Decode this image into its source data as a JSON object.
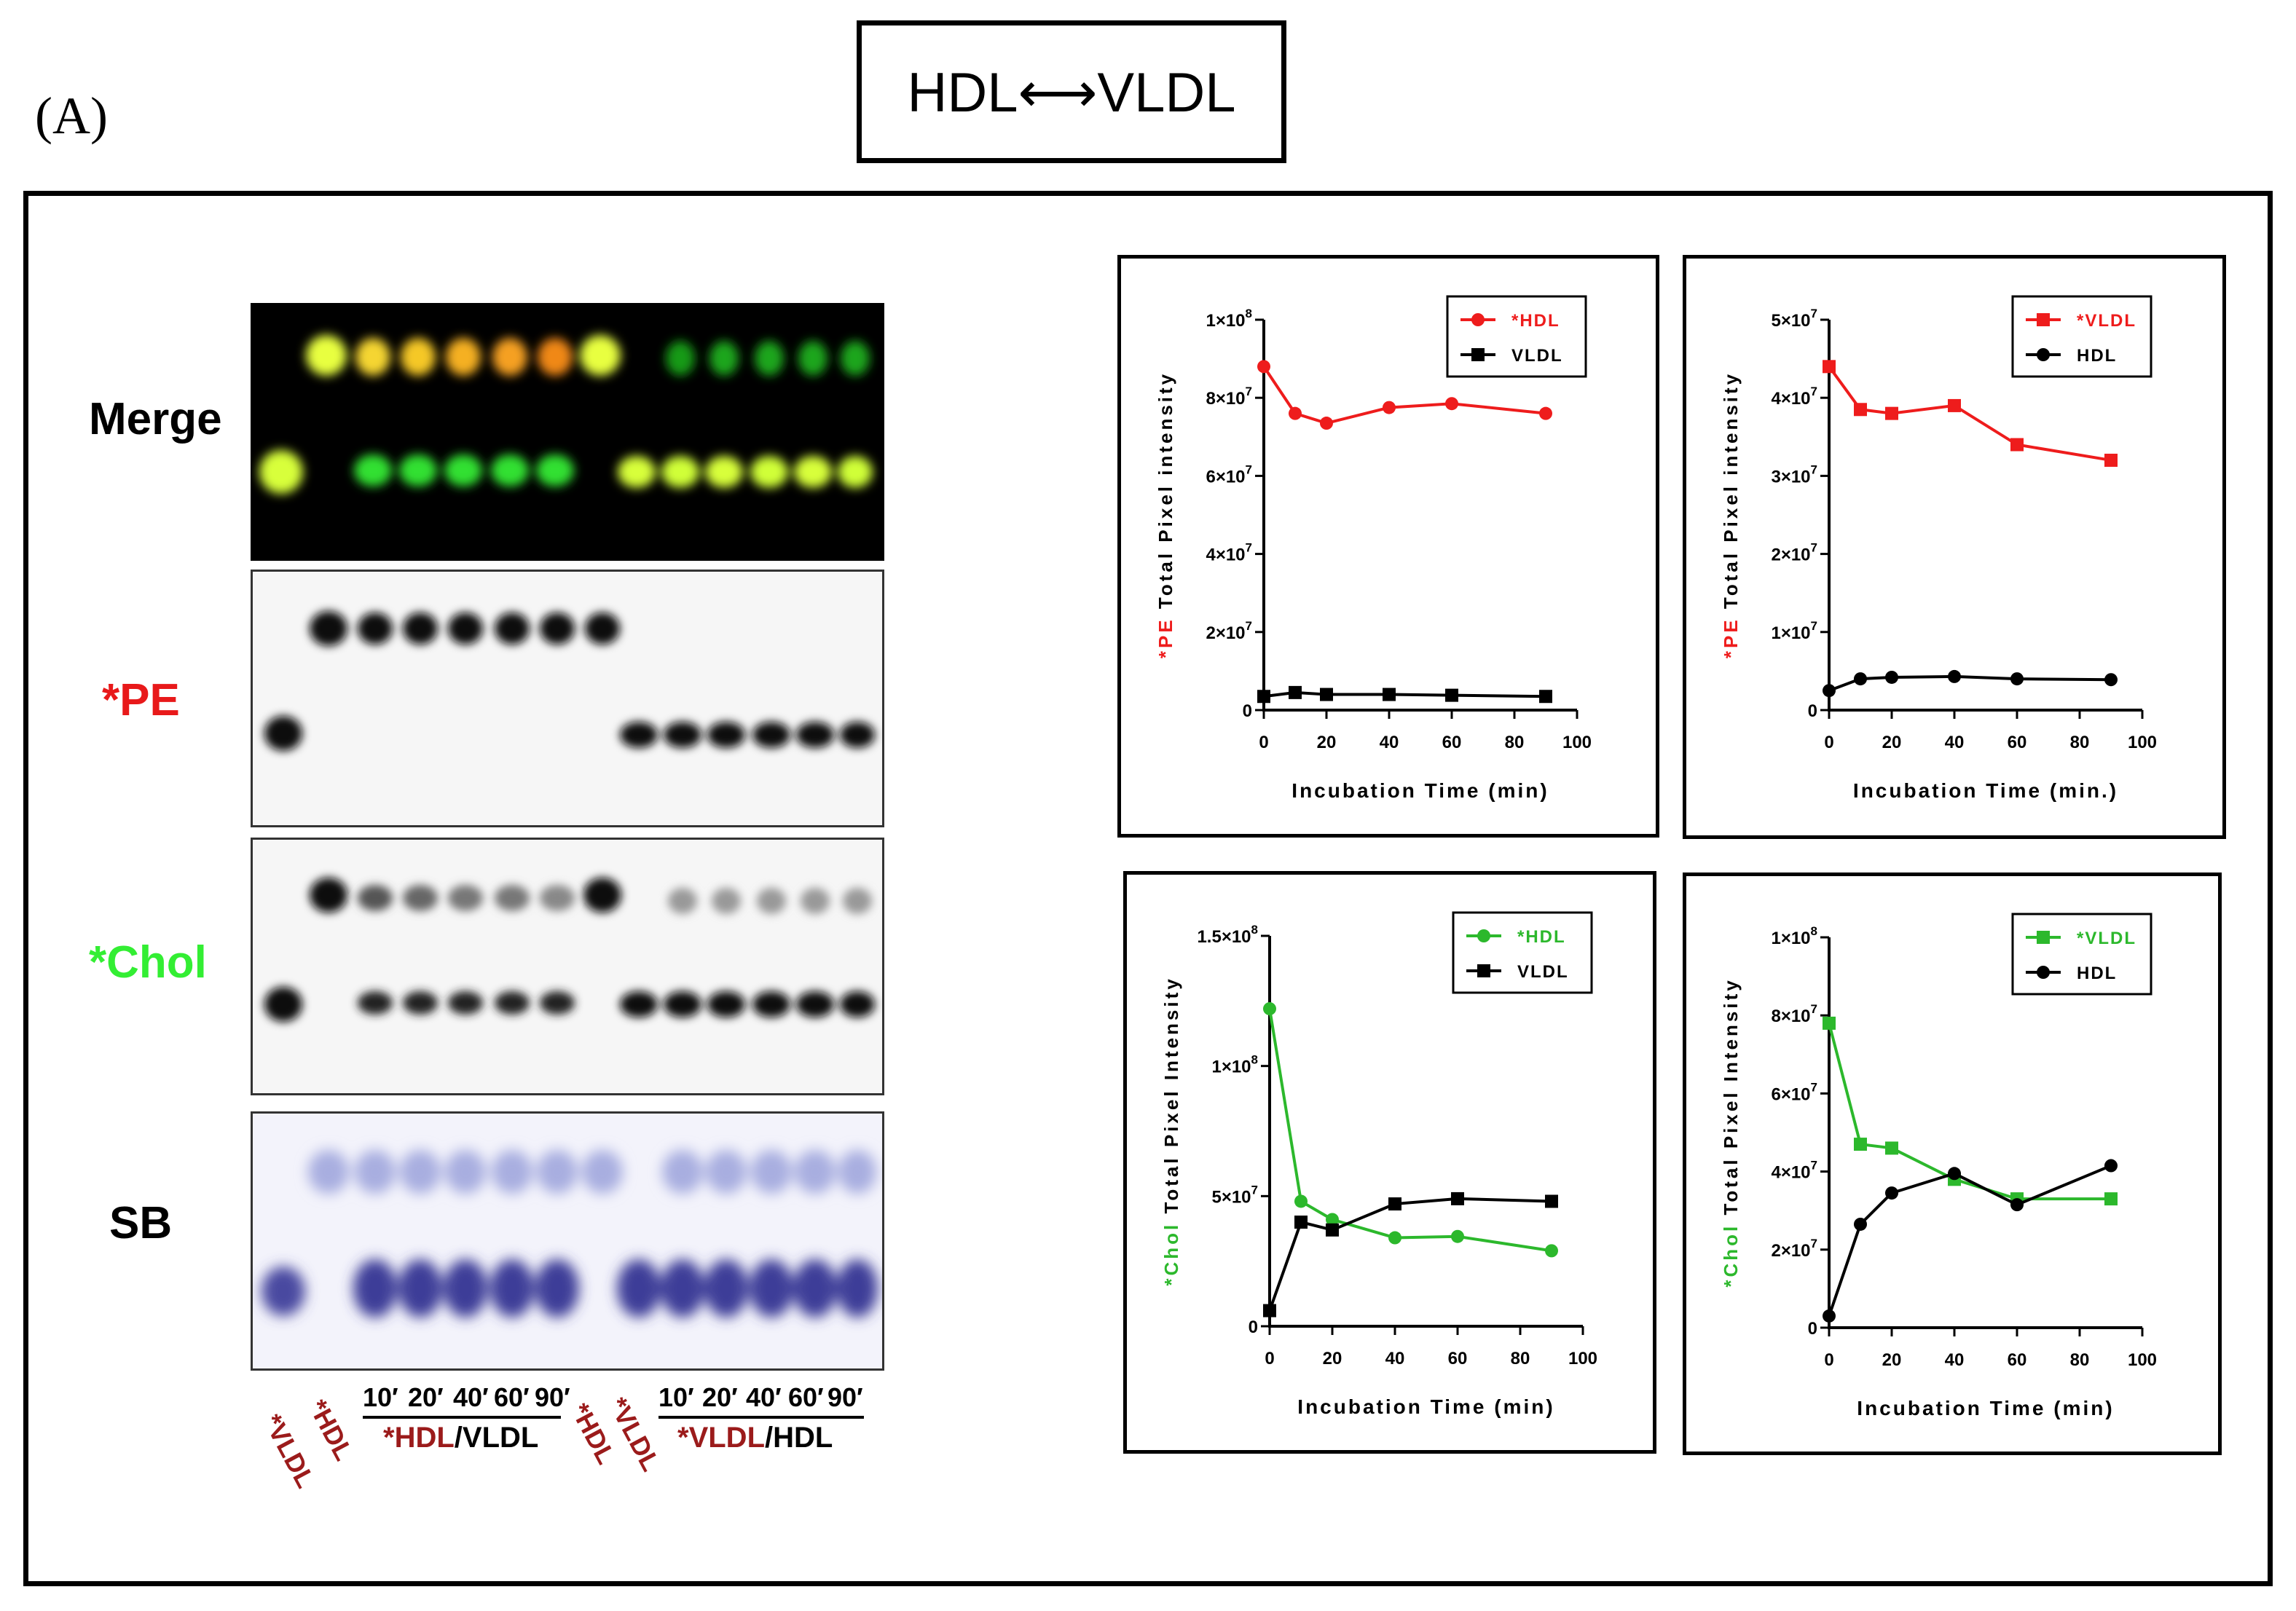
{
  "panel_label": "(A)",
  "header_title": "HDL⟷VLDL",
  "gel": {
    "row_labels": [
      "Merge",
      "*PE",
      "*Chol",
      "SB"
    ],
    "row_label_colors": [
      "#000000",
      "#e8191a",
      "#33ee33",
      "#000000"
    ],
    "lane_labels_left": [
      "*VLDL",
      "*HDL"
    ],
    "time_labels": [
      "10′",
      "20′",
      "40′",
      "60′",
      "90′"
    ],
    "group1_label_star_hdl": "*HDL",
    "group1_label_slash": "/",
    "group1_label_vldl": "VLDL",
    "lane_labels_right": [
      "*HDL",
      "*VLDL"
    ],
    "group2_label_star_vldl": "*VLDL",
    "group2_label_slash": "/",
    "group2_label_hdl": "HDL"
  },
  "colors": {
    "red": "#ee1c1c",
    "green": "#2cb82c",
    "black": "#000000",
    "lane_label": "#9b1b1b"
  },
  "chart_data": [
    {
      "type": "line",
      "ylabel_prefix": "*PE",
      "ylabel_rest": " Total Pixel intensity",
      "ylabel_color": "#ee1c1c",
      "xlabel": "Incubation Time (min)",
      "xlim": [
        0,
        100
      ],
      "xticks": [
        "0",
        "20",
        "40",
        "60",
        "80",
        "100"
      ],
      "ylim": [
        0,
        100000000
      ],
      "yticks": [
        {
          "mant": "0",
          "exp": ""
        },
        {
          "mant": "2×10",
          "exp": "7"
        },
        {
          "mant": "4×10",
          "exp": "7"
        },
        {
          "mant": "6×10",
          "exp": "7"
        },
        {
          "mant": "8×10",
          "exp": "7"
        },
        {
          "mant": "1×10",
          "exp": "8"
        }
      ],
      "legend_position": "top-right",
      "series": [
        {
          "name": "*HDL",
          "color": "#ee1c1c",
          "marker": "circle",
          "x": [
            0,
            10,
            20,
            40,
            60,
            90
          ],
          "values": [
            88000000,
            76000000,
            73500000,
            77500000,
            78500000,
            76000000
          ]
        },
        {
          "name": "VLDL",
          "color": "#000000",
          "marker": "square",
          "x": [
            0,
            10,
            20,
            40,
            60,
            90
          ],
          "values": [
            3500000,
            4500000,
            4000000,
            4000000,
            3800000,
            3500000
          ]
        }
      ]
    },
    {
      "type": "line",
      "ylabel_prefix": "*PE",
      "ylabel_rest": " Total Pixel intensity",
      "ylabel_color": "#ee1c1c",
      "xlabel": "Incubation Time (min.)",
      "xlim": [
        0,
        100
      ],
      "xticks": [
        "0",
        "20",
        "40",
        "60",
        "80",
        "100"
      ],
      "ylim": [
        0,
        50000000
      ],
      "yticks": [
        {
          "mant": "0",
          "exp": ""
        },
        {
          "mant": "1×10",
          "exp": "7"
        },
        {
          "mant": "2×10",
          "exp": "7"
        },
        {
          "mant": "3×10",
          "exp": "7"
        },
        {
          "mant": "4×10",
          "exp": "7"
        },
        {
          "mant": "5×10",
          "exp": "7"
        }
      ],
      "legend_position": "top-right",
      "series": [
        {
          "name": "*VLDL",
          "color": "#ee1c1c",
          "marker": "square",
          "x": [
            0,
            10,
            20,
            40,
            60,
            90
          ],
          "values": [
            44000000,
            38500000,
            38000000,
            39000000,
            34000000,
            32000000
          ]
        },
        {
          "name": "HDL",
          "color": "#000000",
          "marker": "circle",
          "x": [
            0,
            10,
            20,
            40,
            60,
            90
          ],
          "values": [
            2500000,
            4000000,
            4200000,
            4300000,
            4000000,
            3900000
          ]
        }
      ]
    },
    {
      "type": "line",
      "ylabel_prefix": "*Chol",
      "ylabel_rest": " Total Pixel Intensity",
      "ylabel_color": "#2cb82c",
      "xlabel": "Incubation Time (min)",
      "xlim": [
        0,
        100
      ],
      "xticks": [
        "0",
        "20",
        "40",
        "60",
        "80",
        "100"
      ],
      "ylim": [
        0,
        150000000
      ],
      "yticks": [
        {
          "mant": "0",
          "exp": ""
        },
        {
          "mant": "5×10",
          "exp": "7"
        },
        {
          "mant": "1×10",
          "exp": "8"
        },
        {
          "mant": "1.5×10",
          "exp": "8"
        }
      ],
      "legend_position": "top-right",
      "series": [
        {
          "name": "*HDL",
          "color": "#2cb82c",
          "marker": "circle",
          "x": [
            0,
            10,
            20,
            40,
            60,
            90
          ],
          "values": [
            122000000,
            48000000,
            41000000,
            34000000,
            34500000,
            29000000
          ]
        },
        {
          "name": "VLDL",
          "color": "#000000",
          "marker": "square",
          "x": [
            0,
            10,
            20,
            40,
            60,
            90
          ],
          "values": [
            6000000,
            40000000,
            37000000,
            47000000,
            49000000,
            48000000
          ]
        }
      ]
    },
    {
      "type": "line",
      "ylabel_prefix": "*Chol",
      "ylabel_rest": " Total Pixel Intensity",
      "ylabel_color": "#2cb82c",
      "xlabel": "Incubation Time (min)",
      "xlim": [
        0,
        100
      ],
      "xticks": [
        "0",
        "20",
        "40",
        "60",
        "80",
        "100"
      ],
      "ylim": [
        0,
        100000000
      ],
      "yticks": [
        {
          "mant": "0",
          "exp": ""
        },
        {
          "mant": "2×10",
          "exp": "7"
        },
        {
          "mant": "4×10",
          "exp": "7"
        },
        {
          "mant": "6×10",
          "exp": "7"
        },
        {
          "mant": "8×10",
          "exp": "7"
        },
        {
          "mant": "1×10",
          "exp": "8"
        }
      ],
      "legend_position": "top-right",
      "series": [
        {
          "name": "*VLDL",
          "color": "#2cb82c",
          "marker": "square",
          "x": [
            0,
            10,
            20,
            40,
            60,
            90
          ],
          "values": [
            78000000,
            47000000,
            46000000,
            38000000,
            33000000,
            33000000
          ]
        },
        {
          "name": "HDL",
          "color": "#000000",
          "marker": "circle",
          "x": [
            0,
            10,
            20,
            40,
            60,
            90
          ],
          "values": [
            3000000,
            26500000,
            34500000,
            39500000,
            31500000,
            41500000
          ]
        }
      ]
    }
  ]
}
